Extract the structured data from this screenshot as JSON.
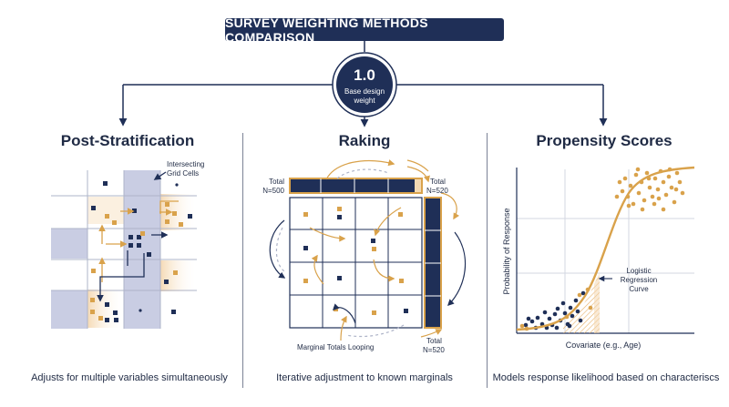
{
  "title": "SURVEY WEIGHTING METHODS COMPARISON",
  "base": {
    "value": "1.0",
    "label_line1": "Base design",
    "label_line2": "weight"
  },
  "panels": [
    {
      "title": "Post-Stratification",
      "caption": "Adjusts for multiple variables simultaneously",
      "annotation_line1": "Intersecting",
      "annotation_line2": "Grid Cells"
    },
    {
      "title": "Raking",
      "caption": "Iterative adjustment to known marginals",
      "total_top_left_line1": "Total",
      "total_top_left_line2": "N=500",
      "total_top_right_line1": "Total",
      "total_top_right_line2": "N=520",
      "total_bottom_line1": "Total",
      "total_bottom_line2": "N=520",
      "annotation": "Marginal Totals Looping"
    },
    {
      "title": "Propensity Scores",
      "caption": "Models response likelihood based on characteriscs",
      "ylabel": "Probability of Response",
      "xlabel": "Covariate (e.g., Age)",
      "curve_label_line1": "Logistic",
      "curve_label_line2": "Regression",
      "curve_label_line3": "Curve"
    }
  ],
  "colors": {
    "navy": "#1f2f57",
    "orange": "#d9a24b",
    "lavender": "#c9cde3",
    "peach": "#f7e3c8"
  }
}
